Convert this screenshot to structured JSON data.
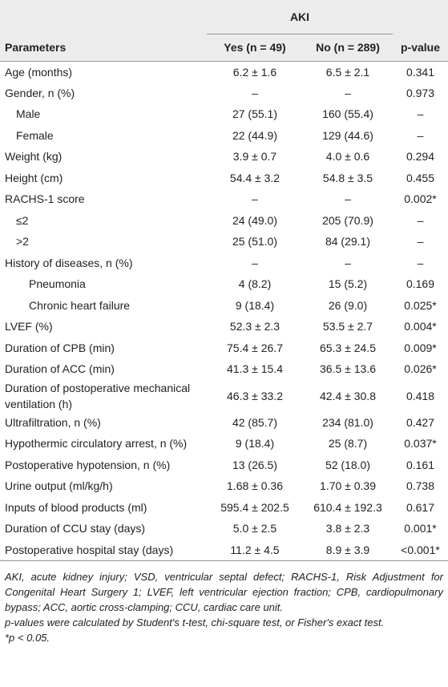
{
  "table": {
    "group_header": "AKI",
    "columns": [
      "Parameters",
      "Yes (n = 49)",
      "No (n = 289)",
      "p-value"
    ],
    "rows": [
      [
        "Age (months)",
        "6.2 ± 1.6",
        "6.5 ± 2.1",
        "0.341"
      ],
      [
        "Gender, n (%)",
        "–",
        "–",
        "0.973"
      ],
      [
        "Male",
        "27 (55.1)",
        "160 (55.4)",
        "–"
      ],
      [
        "Female",
        "22 (44.9)",
        "129 (44.6)",
        "–"
      ],
      [
        "Weight (kg)",
        "3.9 ± 0.7",
        "4.0 ± 0.6",
        "0.294"
      ],
      [
        "Height (cm)",
        "54.4 ± 3.2",
        "54.8 ± 3.5",
        "0.455"
      ],
      [
        "RACHS-1 score",
        "–",
        "–",
        "0.002*"
      ],
      [
        "≤2",
        "24 (49.0)",
        "205 (70.9)",
        "–"
      ],
      [
        ">2",
        "25 (51.0)",
        "84 (29.1)",
        "–"
      ],
      [
        "History of diseases, n (%)",
        "–",
        "–",
        "–"
      ],
      [
        "Pneumonia",
        "4 (8.2)",
        "15 (5.2)",
        "0.169"
      ],
      [
        "Chronic heart failure",
        "9 (18.4)",
        "26 (9.0)",
        "0.025*"
      ],
      [
        "LVEF (%)",
        "52.3 ± 2.3",
        "53.5 ± 2.7",
        "0.004*"
      ],
      [
        "Duration of CPB (min)",
        "75.4 ± 26.7",
        "65.3 ± 24.5",
        "0.009*"
      ],
      [
        "Duration of ACC (min)",
        "41.3 ± 15.4",
        "36.5 ± 13.6",
        "0.026*"
      ],
      [
        "Duration of postoperative mechanical ventilation (h)",
        "46.3 ± 33.2",
        "42.4 ± 30.8",
        "0.418"
      ],
      [
        "Ultrafiltration, n (%)",
        "42 (85.7)",
        "234 (81.0)",
        "0.427"
      ],
      [
        "Hypothermic circulatory arrest, n (%)",
        "9 (18.4)",
        "25 (8.7)",
        "0.037*"
      ],
      [
        "Postoperative hypotension, n (%)",
        "13 (26.5)",
        "52 (18.0)",
        "0.161"
      ],
      [
        "Urine output (ml/kg/h)",
        "1.68 ± 0.36",
        "1.70 ± 0.39",
        "0.738"
      ],
      [
        "Inputs of blood products (ml)",
        "595.4 ± 202.5",
        "610.4 ± 192.3",
        "0.617"
      ],
      [
        "Duration of CCU stay (days)",
        "5.0 ± 2.5",
        "3.8 ± 2.3",
        "0.001*"
      ],
      [
        "Postoperative hospital stay (days)",
        "11.2 ± 4.5",
        "8.9 ± 3.9",
        "<0.001*"
      ]
    ]
  },
  "footnotes": [
    "AKI, acute kidney injury; VSD, ventricular septal defect; RACHS-1, Risk Adjustment for Congenital Heart Surgery 1; LVEF, left ventricular ejection fraction; CPB, cardiopulmonary bypass; ACC, aortic cross-clamping; CCU, cardiac care unit.",
    "p-values were calculated by Student's t-test, chi-square test, or Fisher's exact test.",
    "*p < 0.05."
  ]
}
